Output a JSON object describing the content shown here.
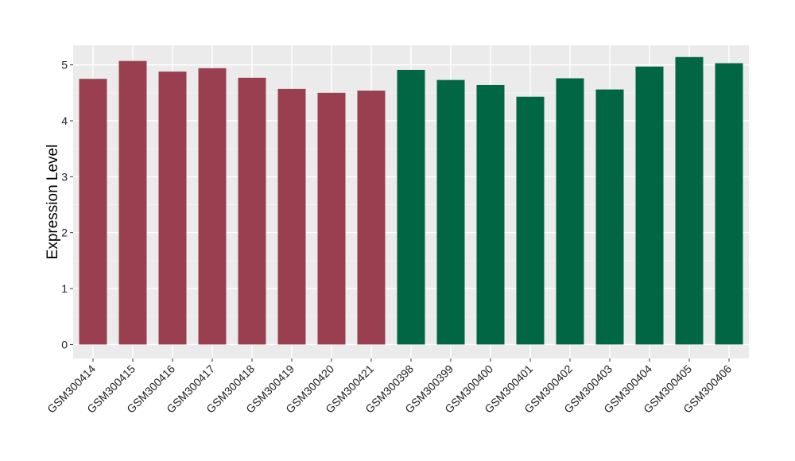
{
  "chart_data": {
    "type": "bar",
    "title": "",
    "xlabel": "",
    "ylabel": "Expression Level",
    "ylim": [
      -0.25,
      5.35
    ],
    "yticks": [
      0,
      1,
      2,
      3,
      4,
      5
    ],
    "grid": true,
    "background": "#EBEBEB",
    "categories": [
      "GSM300414",
      "GSM300415",
      "GSM300416",
      "GSM300417",
      "GSM300418",
      "GSM300419",
      "GSM300420",
      "GSM300421",
      "GSM300398",
      "GSM300399",
      "GSM300400",
      "GSM300401",
      "GSM300402",
      "GSM300403",
      "GSM300404",
      "GSM300405",
      "GSM300406"
    ],
    "values": [
      4.75,
      5.07,
      4.88,
      4.94,
      4.77,
      4.57,
      4.5,
      4.54,
      4.91,
      4.73,
      4.64,
      4.43,
      4.76,
      4.56,
      4.97,
      5.14,
      5.03
    ],
    "bar_colors": [
      "#9A3F4F",
      "#9A3F4F",
      "#9A3F4F",
      "#9A3F4F",
      "#9A3F4F",
      "#9A3F4F",
      "#9A3F4F",
      "#9A3F4F",
      "#006644",
      "#006644",
      "#006644",
      "#006644",
      "#006644",
      "#006644",
      "#006644",
      "#006644",
      "#006644"
    ]
  }
}
